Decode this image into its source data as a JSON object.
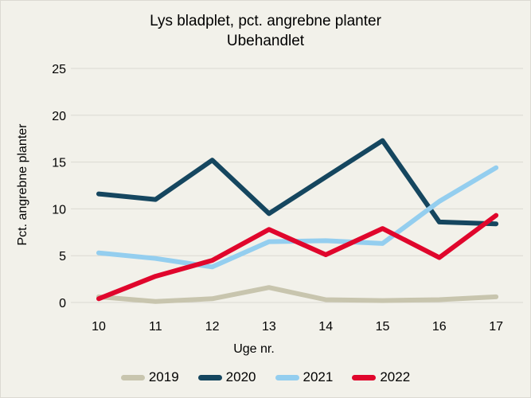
{
  "chart_data": {
    "type": "line",
    "title": "Lys bladplet, pct. angrebne planter",
    "subtitle": "Ubehandlet",
    "xlabel": "Uge nr.",
    "ylabel": "Pct. angrebne planter",
    "x": [
      10,
      11,
      12,
      13,
      14,
      15,
      16,
      17
    ],
    "xticklabels": [
      "10",
      "11",
      "12",
      "13",
      "14",
      "15",
      "16",
      "17"
    ],
    "yticks": [
      0,
      5,
      10,
      15,
      20,
      25
    ],
    "ylim": [
      0,
      25
    ],
    "grid": "horizontal-only",
    "legend_position": "bottom",
    "series": [
      {
        "name": "2019",
        "color": "#c8c5ae",
        "values": [
          0.6,
          0.1,
          0.4,
          1.6,
          0.3,
          0.2,
          0.3,
          0.6
        ]
      },
      {
        "name": "2020",
        "color": "#15465f",
        "values": [
          11.6,
          11.0,
          15.2,
          9.5,
          13.4,
          17.3,
          8.6,
          8.4
        ]
      },
      {
        "name": "2021",
        "color": "#94ceef",
        "values": [
          5.3,
          4.7,
          3.8,
          6.5,
          6.6,
          6.3,
          10.8,
          14.4
        ]
      },
      {
        "name": "2022",
        "color": "#e0062c",
        "values": [
          0.4,
          2.8,
          4.5,
          7.8,
          5.1,
          7.9,
          4.8,
          9.3
        ]
      }
    ]
  },
  "colors": {
    "background": "#f2f1ea",
    "grid": "#dbd9d1",
    "text": "#000000",
    "border": "#dcdad2"
  }
}
